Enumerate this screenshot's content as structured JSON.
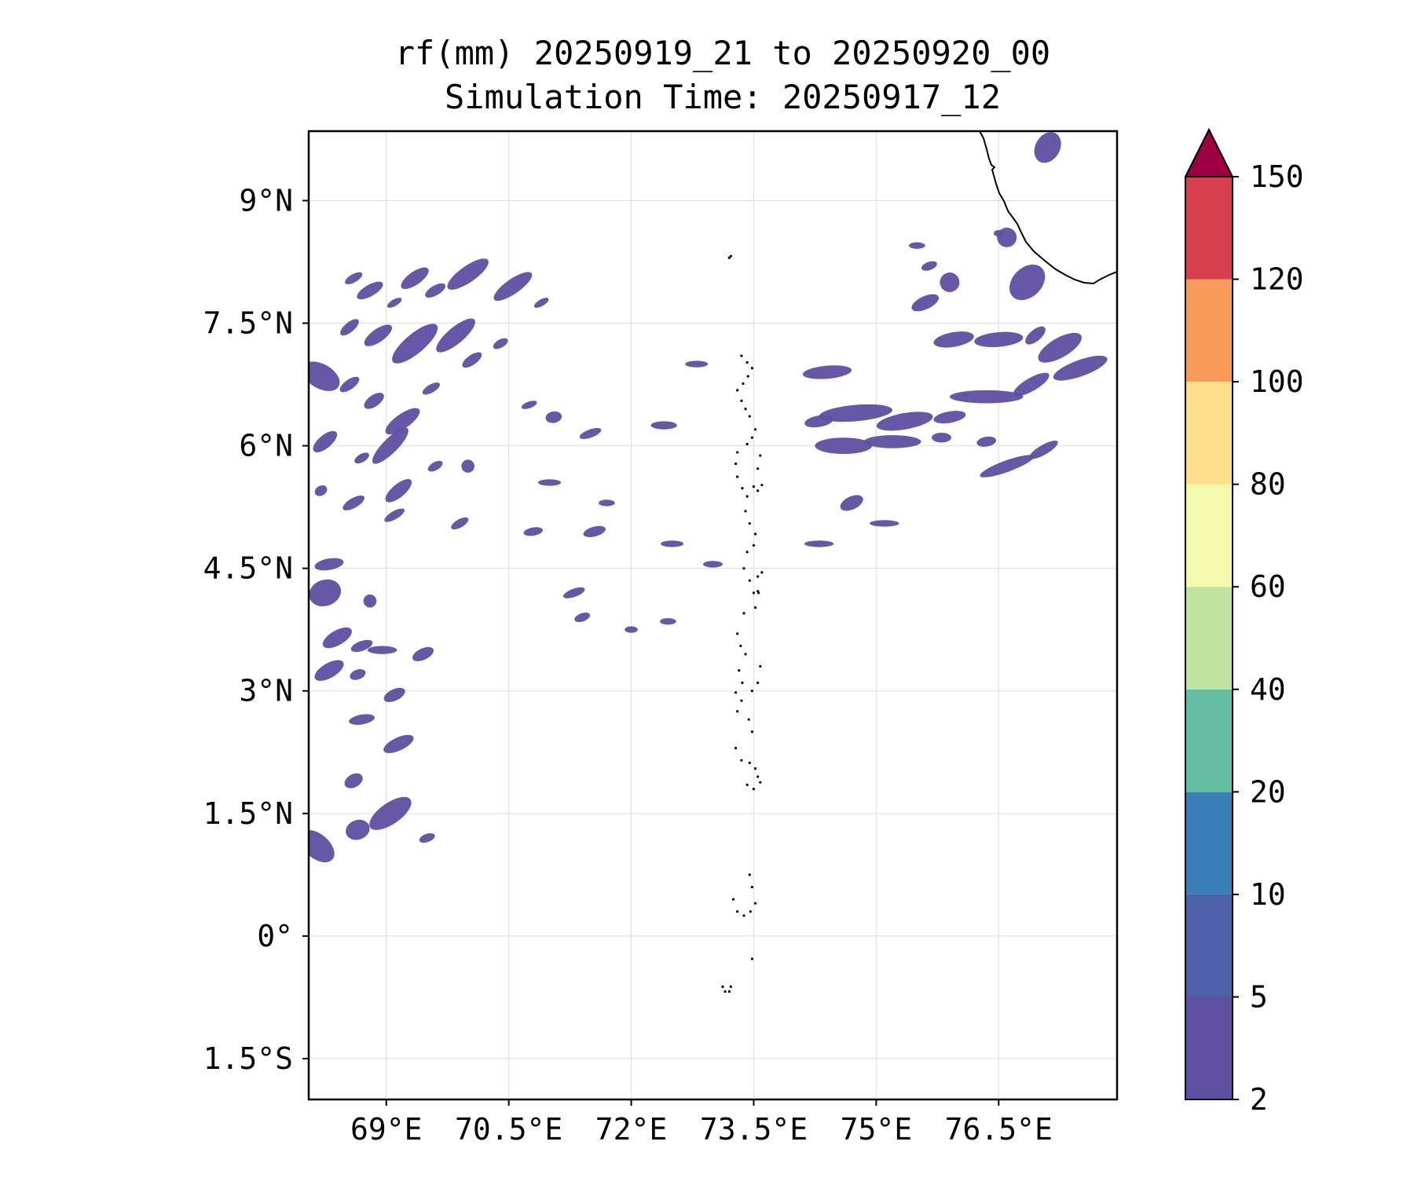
{
  "title": {
    "line1": "rf(mm) 20250919_21 to 20250920_00",
    "line2": "Simulation Time: 20250917_12"
  },
  "map": {
    "lon_range": [
      68.05,
      77.95
    ],
    "lat_range": [
      -2.0,
      9.85
    ],
    "x_ticks": [
      {
        "value": 69.0,
        "label": "69°E"
      },
      {
        "value": 70.5,
        "label": "70.5°E"
      },
      {
        "value": 72.0,
        "label": "72°E"
      },
      {
        "value": 73.5,
        "label": "73.5°E"
      },
      {
        "value": 75.0,
        "label": "75°E"
      },
      {
        "value": 76.5,
        "label": "76.5°E"
      }
    ],
    "y_ticks": [
      {
        "value": 9.0,
        "label": "9°N"
      },
      {
        "value": 7.5,
        "label": "7.5°N"
      },
      {
        "value": 6.0,
        "label": "6°N"
      },
      {
        "value": 4.5,
        "label": "4.5°N"
      },
      {
        "value": 3.0,
        "label": "3°N"
      },
      {
        "value": 1.5,
        "label": "1.5°N"
      },
      {
        "value": 0.0,
        "label": "0°"
      },
      {
        "value": -1.5,
        "label": "1.5°S"
      }
    ],
    "gridlines": true,
    "rain_color": "#5e4fa2",
    "rain_cells": [
      [
        68.6,
        8.05,
        0.12,
        0.05,
        -30
      ],
      [
        68.8,
        7.9,
        0.18,
        0.07,
        -30
      ],
      [
        69.1,
        7.75,
        0.1,
        0.04,
        -30
      ],
      [
        69.35,
        8.05,
        0.2,
        0.08,
        -35
      ],
      [
        69.6,
        7.9,
        0.14,
        0.06,
        -30
      ],
      [
        70.0,
        8.1,
        0.3,
        0.1,
        -35
      ],
      [
        70.55,
        7.95,
        0.28,
        0.09,
        -35
      ],
      [
        70.9,
        7.75,
        0.1,
        0.04,
        -30
      ],
      [
        68.55,
        7.45,
        0.14,
        0.06,
        -40
      ],
      [
        68.9,
        7.35,
        0.2,
        0.08,
        -35
      ],
      [
        69.35,
        7.25,
        0.35,
        0.12,
        -40
      ],
      [
        69.85,
        7.35,
        0.3,
        0.1,
        -40
      ],
      [
        70.05,
        7.05,
        0.14,
        0.06,
        -35
      ],
      [
        70.4,
        7.25,
        0.1,
        0.05,
        -30
      ],
      [
        68.2,
        6.85,
        0.15,
        0.25,
        -60
      ],
      [
        68.55,
        6.75,
        0.14,
        0.06,
        -35
      ],
      [
        68.85,
        6.55,
        0.14,
        0.07,
        -35
      ],
      [
        69.2,
        6.3,
        0.25,
        0.09,
        -35
      ],
      [
        69.55,
        6.7,
        0.12,
        0.05,
        -30
      ],
      [
        68.25,
        6.05,
        0.18,
        0.08,
        -40
      ],
      [
        68.7,
        5.85,
        0.1,
        0.05,
        -30
      ],
      [
        69.05,
        6.0,
        0.3,
        0.09,
        -45
      ],
      [
        69.6,
        5.75,
        0.1,
        0.05,
        -30
      ],
      [
        70.0,
        5.75,
        0.08,
        0.08,
        0
      ],
      [
        68.2,
        5.45,
        0.08,
        0.06,
        -30
      ],
      [
        68.6,
        5.3,
        0.15,
        0.06,
        -30
      ],
      [
        69.15,
        5.45,
        0.2,
        0.08,
        -40
      ],
      [
        69.1,
        5.15,
        0.14,
        0.05,
        -30
      ],
      [
        69.9,
        5.05,
        0.12,
        0.05,
        -30
      ],
      [
        68.3,
        4.55,
        0.18,
        0.07,
        -10
      ],
      [
        68.25,
        4.2,
        0.2,
        0.16,
        -20
      ],
      [
        68.8,
        4.1,
        0.08,
        0.08,
        0
      ],
      [
        68.4,
        3.65,
        0.2,
        0.09,
        -30
      ],
      [
        68.7,
        3.55,
        0.14,
        0.06,
        -20
      ],
      [
        68.95,
        3.5,
        0.18,
        0.05,
        0
      ],
      [
        69.45,
        3.45,
        0.14,
        0.07,
        -25
      ],
      [
        68.3,
        3.25,
        0.2,
        0.09,
        -30
      ],
      [
        68.65,
        3.2,
        0.1,
        0.06,
        -20
      ],
      [
        69.1,
        2.95,
        0.14,
        0.07,
        -25
      ],
      [
        68.7,
        2.65,
        0.16,
        0.06,
        -10
      ],
      [
        69.15,
        2.35,
        0.2,
        0.08,
        -25
      ],
      [
        68.6,
        1.9,
        0.12,
        0.08,
        -30
      ],
      [
        69.05,
        1.5,
        0.3,
        0.13,
        -35
      ],
      [
        68.65,
        1.3,
        0.15,
        0.12,
        -20
      ],
      [
        68.15,
        1.1,
        0.15,
        0.25,
        -50
      ],
      [
        69.5,
        1.2,
        0.1,
        0.05,
        -20
      ],
      [
        71.05,
        6.35,
        0.1,
        0.07,
        -10
      ],
      [
        71.5,
        6.15,
        0.14,
        0.05,
        -20
      ],
      [
        70.75,
        6.5,
        0.1,
        0.04,
        -20
      ],
      [
        71.0,
        5.55,
        0.14,
        0.04,
        0
      ],
      [
        70.8,
        4.95,
        0.12,
        0.05,
        -10
      ],
      [
        71.55,
        4.95,
        0.14,
        0.06,
        -15
      ],
      [
        71.7,
        5.3,
        0.1,
        0.04,
        0
      ],
      [
        71.3,
        4.2,
        0.14,
        0.05,
        -20
      ],
      [
        71.4,
        3.9,
        0.1,
        0.05,
        -20
      ],
      [
        72.0,
        3.75,
        0.08,
        0.04,
        0
      ],
      [
        72.45,
        3.85,
        0.1,
        0.04,
        0
      ],
      [
        72.5,
        4.8,
        0.14,
        0.04,
        0
      ],
      [
        73.0,
        4.55,
        0.12,
        0.04,
        0
      ],
      [
        72.4,
        6.25,
        0.16,
        0.05,
        0
      ],
      [
        72.8,
        7.0,
        0.14,
        0.04,
        0
      ],
      [
        74.75,
        6.4,
        0.45,
        0.1,
        -5
      ],
      [
        75.35,
        6.3,
        0.35,
        0.1,
        -10
      ],
      [
        75.9,
        6.35,
        0.2,
        0.07,
        -10
      ],
      [
        74.3,
        6.3,
        0.18,
        0.07,
        -10
      ],
      [
        74.6,
        6.0,
        0.35,
        0.1,
        0
      ],
      [
        75.2,
        6.05,
        0.35,
        0.08,
        0
      ],
      [
        75.8,
        6.1,
        0.12,
        0.06,
        0
      ],
      [
        76.35,
        6.05,
        0.12,
        0.06,
        -10
      ],
      [
        74.4,
        6.9,
        0.3,
        0.08,
        -5
      ],
      [
        74.7,
        5.3,
        0.15,
        0.08,
        -25
      ],
      [
        75.1,
        5.05,
        0.18,
        0.04,
        0
      ],
      [
        74.3,
        4.8,
        0.18,
        0.04,
        0
      ],
      [
        75.95,
        7.3,
        0.25,
        0.09,
        -10
      ],
      [
        76.5,
        7.3,
        0.3,
        0.09,
        -5
      ],
      [
        76.95,
        7.35,
        0.15,
        0.07,
        -40
      ],
      [
        77.25,
        7.2,
        0.3,
        0.12,
        -30
      ],
      [
        77.5,
        6.95,
        0.35,
        0.1,
        -20
      ],
      [
        76.35,
        6.6,
        0.45,
        0.08,
        0
      ],
      [
        76.9,
        6.75,
        0.25,
        0.08,
        -30
      ],
      [
        76.6,
        5.75,
        0.35,
        0.07,
        -20
      ],
      [
        77.05,
        5.95,
        0.2,
        0.06,
        -30
      ],
      [
        76.85,
        8.0,
        0.25,
        0.18,
        -45
      ],
      [
        76.6,
        8.55,
        0.12,
        0.12,
        -40
      ],
      [
        77.1,
        9.65,
        0.2,
        0.15,
        -60
      ],
      [
        75.6,
        7.75,
        0.18,
        0.08,
        -25
      ],
      [
        75.9,
        8.0,
        0.12,
        0.12,
        -10
      ],
      [
        75.65,
        8.2,
        0.1,
        0.05,
        -20
      ],
      [
        76.5,
        8.6,
        0.06,
        0.04,
        0
      ],
      [
        75.5,
        8.45,
        0.1,
        0.04,
        0
      ]
    ],
    "maldives_islands": [
      [
        73.35,
        7.1
      ],
      [
        73.42,
        7.02
      ],
      [
        73.48,
        6.95
      ],
      [
        73.43,
        6.85
      ],
      [
        73.37,
        6.76
      ],
      [
        73.3,
        6.68
      ],
      [
        73.35,
        6.55
      ],
      [
        73.4,
        6.45
      ],
      [
        73.45,
        6.36
      ],
      [
        73.52,
        6.2
      ],
      [
        73.48,
        6.1
      ],
      [
        73.42,
        6.02
      ],
      [
        73.3,
        5.92
      ],
      [
        73.28,
        5.78
      ],
      [
        73.3,
        5.62
      ],
      [
        73.36,
        5.48
      ],
      [
        73.42,
        5.38
      ],
      [
        73.5,
        5.5
      ],
      [
        73.55,
        5.45
      ],
      [
        73.6,
        5.52
      ],
      [
        73.55,
        5.72
      ],
      [
        73.58,
        5.88
      ],
      [
        73.4,
        5.2
      ],
      [
        73.45,
        5.05
      ],
      [
        73.52,
        4.92
      ],
      [
        73.5,
        4.78
      ],
      [
        73.42,
        4.7
      ],
      [
        73.38,
        4.5
      ],
      [
        73.45,
        4.35
      ],
      [
        73.55,
        4.4
      ],
      [
        73.56,
        4.2
      ],
      [
        73.52,
        4.02
      ],
      [
        73.38,
        3.95
      ],
      [
        73.3,
        3.7
      ],
      [
        73.34,
        3.55
      ],
      [
        73.4,
        3.45
      ],
      [
        73.32,
        3.25
      ],
      [
        73.36,
        3.1
      ],
      [
        73.28,
        2.98
      ],
      [
        73.35,
        2.88
      ],
      [
        73.3,
        2.75
      ],
      [
        73.48,
        3.0
      ],
      [
        73.55,
        3.1
      ],
      [
        73.58,
        3.3
      ],
      [
        73.44,
        2.65
      ],
      [
        73.48,
        2.5
      ],
      [
        73.28,
        2.3
      ],
      [
        73.35,
        2.15
      ],
      [
        73.45,
        2.12
      ],
      [
        73.52,
        2.05
      ],
      [
        73.55,
        1.95
      ],
      [
        73.42,
        1.85
      ],
      [
        73.5,
        1.8
      ],
      [
        73.58,
        1.88
      ],
      [
        73.45,
        0.75
      ],
      [
        73.48,
        0.6
      ],
      [
        73.52,
        0.4
      ],
      [
        73.46,
        0.3
      ],
      [
        73.38,
        0.25
      ],
      [
        73.3,
        0.3
      ],
      [
        73.25,
        0.45
      ],
      [
        73.48,
        -0.28
      ],
      [
        73.12,
        -0.62
      ],
      [
        73.15,
        -0.68
      ],
      [
        73.2,
        -0.68
      ],
      [
        73.22,
        -0.62
      ],
      [
        73.2,
        8.3
      ],
      [
        73.22,
        8.32
      ],
      [
        73.55,
        4.22
      ],
      [
        73.5,
        4.2
      ],
      [
        73.6,
        4.45
      ]
    ]
  },
  "colorbar": {
    "levels": [
      2,
      5,
      10,
      20,
      40,
      60,
      80,
      100,
      120,
      150
    ],
    "labels": [
      "2",
      "5",
      "10",
      "20",
      "40",
      "60",
      "80",
      "100",
      "120",
      "150"
    ],
    "colors": [
      "#5e4fa2",
      "#4f61aa",
      "#3a7eb8",
      "#63bea4",
      "#bee4a0",
      "#f3f9ad",
      "#fddf8b",
      "#f99b5a",
      "#d6404e"
    ],
    "extend_color": "#9e0142"
  }
}
